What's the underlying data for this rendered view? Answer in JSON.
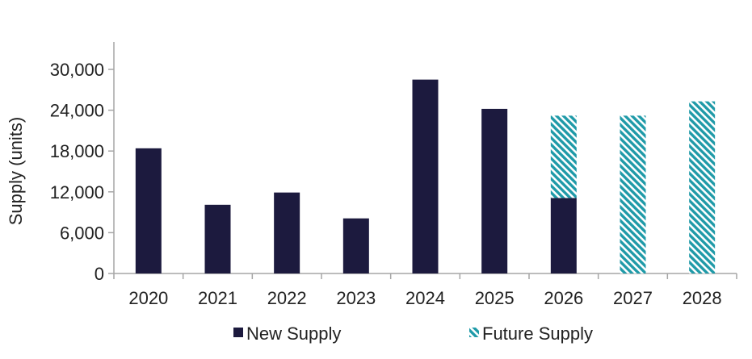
{
  "chart_data": {
    "type": "bar",
    "stacked": true,
    "categories": [
      "2020",
      "2021",
      "2022",
      "2023",
      "2024",
      "2025",
      "2026",
      "2027",
      "2028"
    ],
    "series": [
      {
        "name": "New Supply",
        "color": "#1c1a3e",
        "pattern": "solid",
        "values": [
          18400,
          10100,
          11900,
          8100,
          28500,
          24200,
          11100,
          0,
          0
        ]
      },
      {
        "name": "Future Supply",
        "color": "#1f9aa8",
        "pattern": "diagonal-hatch",
        "values": [
          0,
          0,
          0,
          0,
          0,
          0,
          12100,
          23200,
          25300
        ]
      }
    ],
    "ylabel": "Supply (units)",
    "xlabel": "",
    "ylim": [
      0,
      30000
    ],
    "yticks": [
      0,
      6000,
      12000,
      18000,
      24000,
      30000
    ],
    "ytick_labels": [
      "0",
      "6,000",
      "12,000",
      "18,000",
      "24,000",
      "30,000"
    ],
    "grid": false,
    "legend_position": "bottom"
  }
}
